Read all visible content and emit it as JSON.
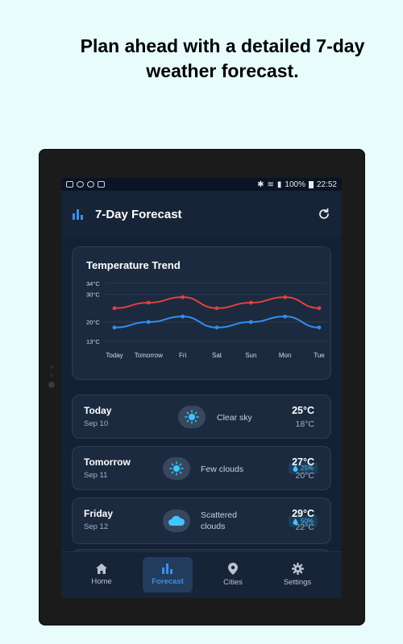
{
  "headline": {
    "line1": "Plan ahead with a detailed 7-day",
    "line2": "weather forecast."
  },
  "statusbar": {
    "battery": "100%",
    "time": "22:52"
  },
  "appbar": {
    "title": "7-Day Forecast"
  },
  "chart_data": {
    "type": "line",
    "title": "Temperature Trend",
    "categories": [
      "Today",
      "Tomorrow",
      "Fri",
      "Sat",
      "Sun",
      "Mon",
      "Tue"
    ],
    "y_tick_labels": [
      "34°C",
      "30°C",
      "20°C",
      "13°C"
    ],
    "y_ticks": [
      34,
      30,
      20,
      13
    ],
    "ylim": [
      13,
      34
    ],
    "series": [
      {
        "color": "#e0413c",
        "values": [
          25,
          27,
          29,
          25,
          27,
          29,
          25
        ]
      },
      {
        "color": "#2f8ff0",
        "values": [
          18,
          20,
          22,
          18,
          20,
          22,
          18
        ]
      }
    ]
  },
  "forecast": [
    {
      "day": "Today",
      "date": "Sep 10",
      "condition": "Clear sky",
      "icon": "sun-icon",
      "hi": "25°C",
      "lo": "18°C",
      "rain": ""
    },
    {
      "day": "Tomorrow",
      "date": "Sep 11",
      "condition": "Few clouds",
      "icon": "sun-icon",
      "hi": "27°C",
      "lo": "20°C",
      "rain": "25%"
    },
    {
      "day": "Friday",
      "date": "Sep 12",
      "condition_line1": "Scattered",
      "condition_line2": "clouds",
      "icon": "cloud-icon",
      "hi": "29°C",
      "lo": "22°C",
      "rain": "50%"
    }
  ],
  "nav": {
    "home": "Home",
    "forecast": "Forecast",
    "cities": "Cities",
    "settings": "Settings"
  },
  "colors": {
    "accent": "#3d8fe8",
    "rain_text": "#4cc3ff",
    "sun": "#3ec7ff"
  }
}
